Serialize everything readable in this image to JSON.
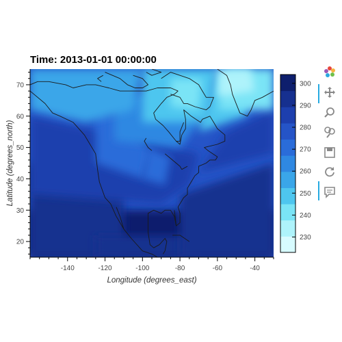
{
  "chart_data": {
    "type": "heatmap",
    "title": "Time: 2013-01-01 00:00:00",
    "xlabel": "Longitude (degrees_east)",
    "ylabel": "Latitude (degrees_north)",
    "xlim": [
      -160,
      -30
    ],
    "ylim": [
      15,
      75
    ],
    "x_ticks": [
      -140,
      -120,
      -100,
      -80,
      -60,
      -40
    ],
    "y_ticks": [
      20,
      30,
      40,
      50,
      60,
      70
    ],
    "grid": false,
    "colorbar": {
      "range": [
        223,
        304
      ],
      "ticks": [
        230,
        240,
        250,
        260,
        270,
        280,
        290,
        300
      ],
      "colors": [
        "#d7fbff",
        "#aef3fb",
        "#7ae4f6",
        "#4ec6ef",
        "#3aa6e9",
        "#2f88e2",
        "#2a6cd9",
        "#2554c7",
        "#1d3fae",
        "#16308f",
        "#0e1f6d"
      ]
    },
    "field_description": "air temperature contour field over North America with coastlines"
  },
  "toolbar": {
    "tools": [
      "bokeh-logo-icon",
      "pan-icon",
      "box-zoom-icon",
      "wheel-zoom-icon",
      "save-icon",
      "reset-icon",
      "hover-icon"
    ]
  }
}
